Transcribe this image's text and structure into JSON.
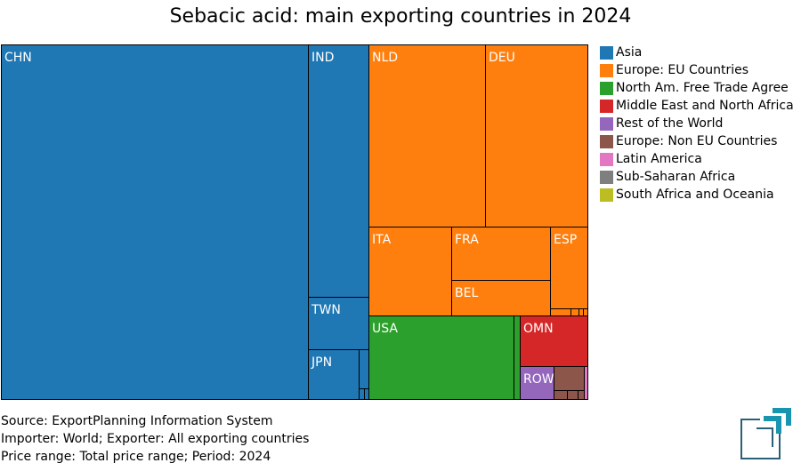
{
  "chart_data": {
    "type": "treemap",
    "title": "Sebacic acid: main exporting countries in 2024",
    "groups": [
      {
        "name": "Asia",
        "color": "#1f77b4"
      },
      {
        "name": "Europe: EU Countries",
        "color": "#ff7f0e"
      },
      {
        "name": "North Am. Free Trade Agreement",
        "color": "#2ca02c"
      },
      {
        "name": "Middle East and North Africa",
        "color": "#d62728"
      },
      {
        "name": "Rest of the World",
        "color": "#9467bd"
      },
      {
        "name": "Europe: Non EU Countries",
        "color": "#8c564b"
      },
      {
        "name": "Latin America",
        "color": "#e377c2"
      },
      {
        "name": "Sub-Saharan Africa",
        "color": "#7f7f7f"
      },
      {
        "name": "South Africa and Oceania",
        "color": "#bcbd22"
      }
    ],
    "legend_labels": [
      "Asia",
      "Europe: EU Countries",
      "North Am. Free Trade Agree",
      "Middle East and North Africa",
      "Rest of the World",
      "Europe: Non EU Countries",
      "Latin America",
      "Sub-Saharan Africa",
      "South Africa and Oceania"
    ],
    "labeled_tiles": [
      "CHN",
      "IND",
      "TWN",
      "JPN",
      "NLD",
      "DEU",
      "ITA",
      "FRA",
      "BEL",
      "ESP",
      "USA",
      "OMN",
      "ROW"
    ],
    "legend_position": "right"
  },
  "footer": {
    "source": "Source: ExportPlanning Information System",
    "importer": "Importer: World; Exporter: All exporting countries",
    "price": "Price range: Total price range; Period: 2024"
  }
}
